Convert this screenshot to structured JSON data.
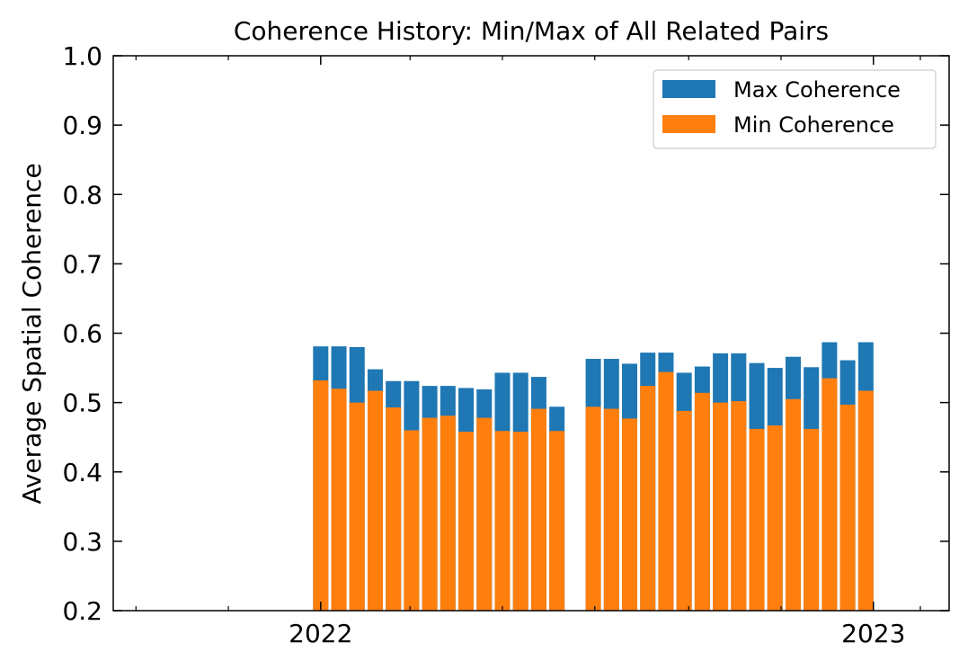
{
  "chart_data": {
    "type": "bar",
    "title": "Coherence History: Min/Max of All Related Pairs",
    "xlabel": "",
    "ylabel": "Average Spatial Coherence",
    "ylim": [
      0.2,
      1.0
    ],
    "yticks": [
      "0.2",
      "0.3",
      "0.4",
      "0.5",
      "0.6",
      "0.7",
      "0.8",
      "0.9",
      "1.0"
    ],
    "xlim": [
      "2021-08-17",
      "2023-02-20"
    ],
    "xticks_major": [
      {
        "date": "2022-01-01",
        "label": "2022"
      },
      {
        "date": "2023-01-01",
        "label": "2023"
      }
    ],
    "xticks_minor": [
      "2021-09-01",
      "2021-11-01",
      "2022-03-01",
      "2022-05-01",
      "2022-07-01",
      "2022-09-01",
      "2022-11-01",
      "2023-02-01"
    ],
    "bar_style": "overlaid",
    "legend": {
      "placement": "top-right",
      "frame": true
    },
    "grid": false,
    "series": [
      {
        "name": "Max Coherence",
        "color": "#1f77b4",
        "values": [
          0.581,
          0.581,
          0.58,
          0.548,
          0.531,
          0.531,
          0.524,
          0.524,
          0.521,
          0.519,
          0.543,
          0.543,
          0.537,
          0.494,
          0.563,
          0.563,
          0.556,
          0.572,
          0.572,
          0.543,
          0.552,
          0.571,
          0.571,
          0.557,
          0.55,
          0.566,
          0.551,
          0.587,
          0.561,
          0.587
        ]
      },
      {
        "name": "Min Coherence",
        "color": "#ff7f0e",
        "values": [
          0.532,
          0.52,
          0.5,
          0.517,
          0.493,
          0.46,
          0.478,
          0.481,
          0.458,
          0.478,
          0.459,
          0.458,
          0.491,
          0.459,
          0.494,
          0.491,
          0.477,
          0.524,
          0.544,
          0.488,
          0.514,
          0.5,
          0.502,
          0.462,
          0.467,
          0.505,
          0.462,
          0.535,
          0.497,
          0.517
        ]
      }
    ],
    "x": [
      "2022-01-01",
      "2022-01-13",
      "2022-01-25",
      "2022-02-06",
      "2022-02-18",
      "2022-03-02",
      "2022-03-14",
      "2022-03-26",
      "2022-04-07",
      "2022-04-19",
      "2022-05-01",
      "2022-05-13",
      "2022-05-25",
      "2022-06-06",
      "2022-06-30",
      "2022-07-12",
      "2022-07-24",
      "2022-08-05",
      "2022-08-17",
      "2022-08-29",
      "2022-09-10",
      "2022-09-22",
      "2022-10-04",
      "2022-10-16",
      "2022-10-28",
      "2022-11-09",
      "2022-11-21",
      "2022-12-03",
      "2022-12-15",
      "2022-12-27"
    ]
  }
}
